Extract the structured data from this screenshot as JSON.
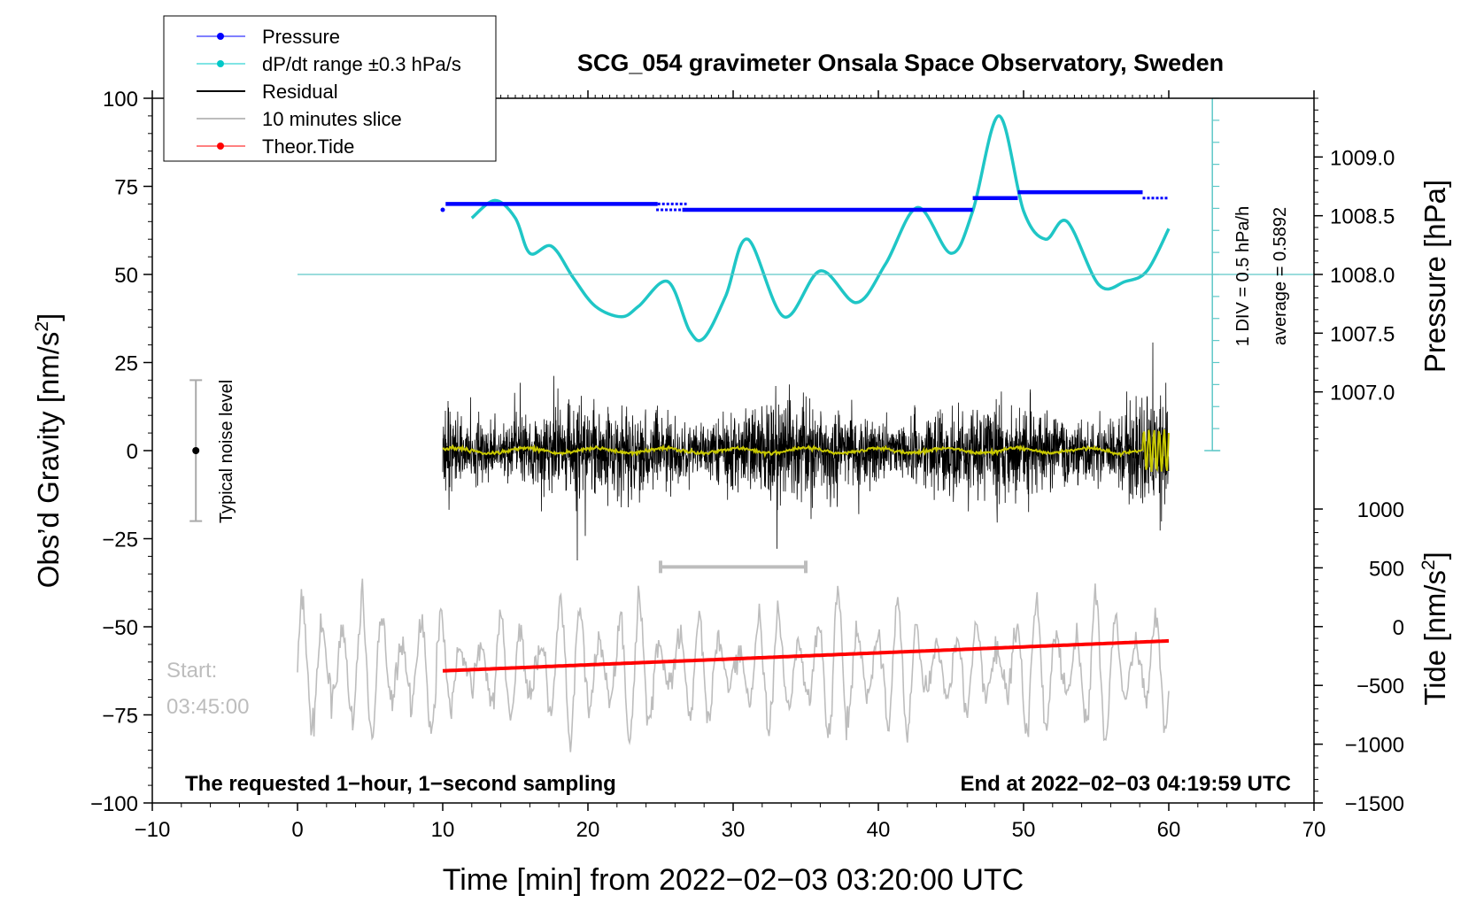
{
  "chart_data": {
    "type": "line",
    "title": "SCG_054 gravimeter Onsala Space Observatory, Sweden",
    "xlabel": "Time [min] from 2022−02−03 03:20:00 UTC",
    "ylabel_left": "Obs’d Gravity [nm/s²]",
    "ylabel_left_base": "Obs’d Gravity [nm/s",
    "ylabel_left_sup": "2",
    "ylabel_left_end": "]",
    "ylabel_right_top": "Pressure [hPa]",
    "ylabel_right_bottom": "Tide [nm/s²]",
    "ylabel_right_bottom_base": "Tide [nm/s",
    "ylabel_right_bottom_sup": "2",
    "ylabel_right_bottom_end": "]",
    "xlim": [
      -10,
      70
    ],
    "ylim": [
      -100,
      100
    ],
    "x_ticks": [
      -10,
      0,
      10,
      20,
      30,
      40,
      50,
      60,
      70
    ],
    "x_tick_labels": [
      "−10",
      "0",
      "10",
      "20",
      "30",
      "40",
      "50",
      "60",
      "70"
    ],
    "y_ticks": [
      100,
      75,
      50,
      25,
      0,
      -25,
      -50,
      -75,
      -100
    ],
    "y_tick_labels": [
      "100",
      "75",
      "50",
      "25",
      "0",
      "−25",
      "−50",
      "−75",
      "−100"
    ],
    "pressure_axis": {
      "range": [
        1006.5,
        1009.5
      ],
      "ticks": [
        1009.0,
        1008.5,
        1008.0,
        1007.5,
        1007.0
      ],
      "tick_labels": [
        "1009.0",
        "1008.5",
        "1008.0",
        "1007.5",
        "1007.0"
      ]
    },
    "tide_axis": {
      "range": [
        -1500,
        1000
      ],
      "ticks": [
        1000,
        500,
        0,
        -500,
        -1000,
        -1500
      ],
      "tick_labels": [
        "1000",
        "500",
        "0",
        "−500",
        "−1000",
        "−1500"
      ]
    },
    "legend": {
      "position": "top-left",
      "entries": [
        {
          "label": "Pressure",
          "color": "#0000ff",
          "marker": true
        },
        {
          "label": "dP/dt range ±0.3 hPa/s",
          "color": "#00c8c8",
          "marker": true
        },
        {
          "label": "Residual",
          "color": "#000000",
          "marker": false
        },
        {
          "label": "10 minutes slice",
          "color": "#bdbdbd",
          "marker": false
        },
        {
          "label": "Theor.Tide",
          "color": "#ff0000",
          "marker": true
        }
      ]
    },
    "pressure_segments": [
      {
        "x0": 10.2,
        "x1": 24.8,
        "hpa": 1008.6
      },
      {
        "x0": 24.8,
        "x1": 26.8,
        "hpa": 1008.6,
        "dotted": true
      },
      {
        "x0": 24.7,
        "x1": 26.5,
        "hpa": 1008.55,
        "dotted": true
      },
      {
        "x0": 26.5,
        "x1": 46.5,
        "hpa": 1008.55
      },
      {
        "x0": 46.5,
        "x1": 49.6,
        "hpa": 1008.65
      },
      {
        "x0": 49.6,
        "x1": 58.2,
        "hpa": 1008.7
      },
      {
        "x0": 58.2,
        "x1": 60.0,
        "hpa": 1008.65,
        "dotted": true
      }
    ],
    "pressure_points": [
      {
        "x": 10.0,
        "hpa": 1008.55
      }
    ],
    "dpdt_curve": {
      "x": [
        12,
        13.6,
        15,
        16,
        17.5,
        19,
        20.5,
        22.3,
        23.5,
        25.5,
        27,
        28,
        29.5,
        31,
        33.5,
        36,
        38.5,
        40.5,
        42.7,
        45,
        46.5,
        48.3,
        50,
        51.5,
        53,
        55.2,
        57,
        58.5,
        60
      ],
      "y": [
        66,
        71,
        66,
        56,
        58,
        49,
        41,
        38,
        41,
        48,
        34,
        32,
        44,
        60,
        38,
        51,
        42,
        53,
        69,
        56,
        68,
        95,
        68,
        60,
        65,
        47,
        48,
        51,
        63
      ]
    },
    "pressure_scale_note": "1 DIV = 0.5 hPa/h",
    "average_note": "average = 0.5892",
    "noise_label": "Typical noise level",
    "noise_range": [
      -20,
      20
    ],
    "slice_bar": [
      25,
      35
    ],
    "residual_range": [
      10,
      60
    ],
    "slice_range": [
      0,
      60
    ],
    "tide_line": {
      "x": [
        10,
        60
      ],
      "y": [
        -62.5,
        -54
      ]
    },
    "start_label": "Start:",
    "start_time": "03:45:00",
    "footer_left": "The requested 1−hour, 1−second sampling",
    "footer_right": "End at 2022−02−03 04:19:59 UTC",
    "colors": {
      "pressure": "#0000ff",
      "dpdt": "#1fc6c6",
      "dpdt_axis": "#5fc8c8",
      "residual": "#000000",
      "slice": "#bdbdbd",
      "tide": "#ff0000",
      "smooth": "#c8c800",
      "noise": "#aaaaaa"
    }
  }
}
